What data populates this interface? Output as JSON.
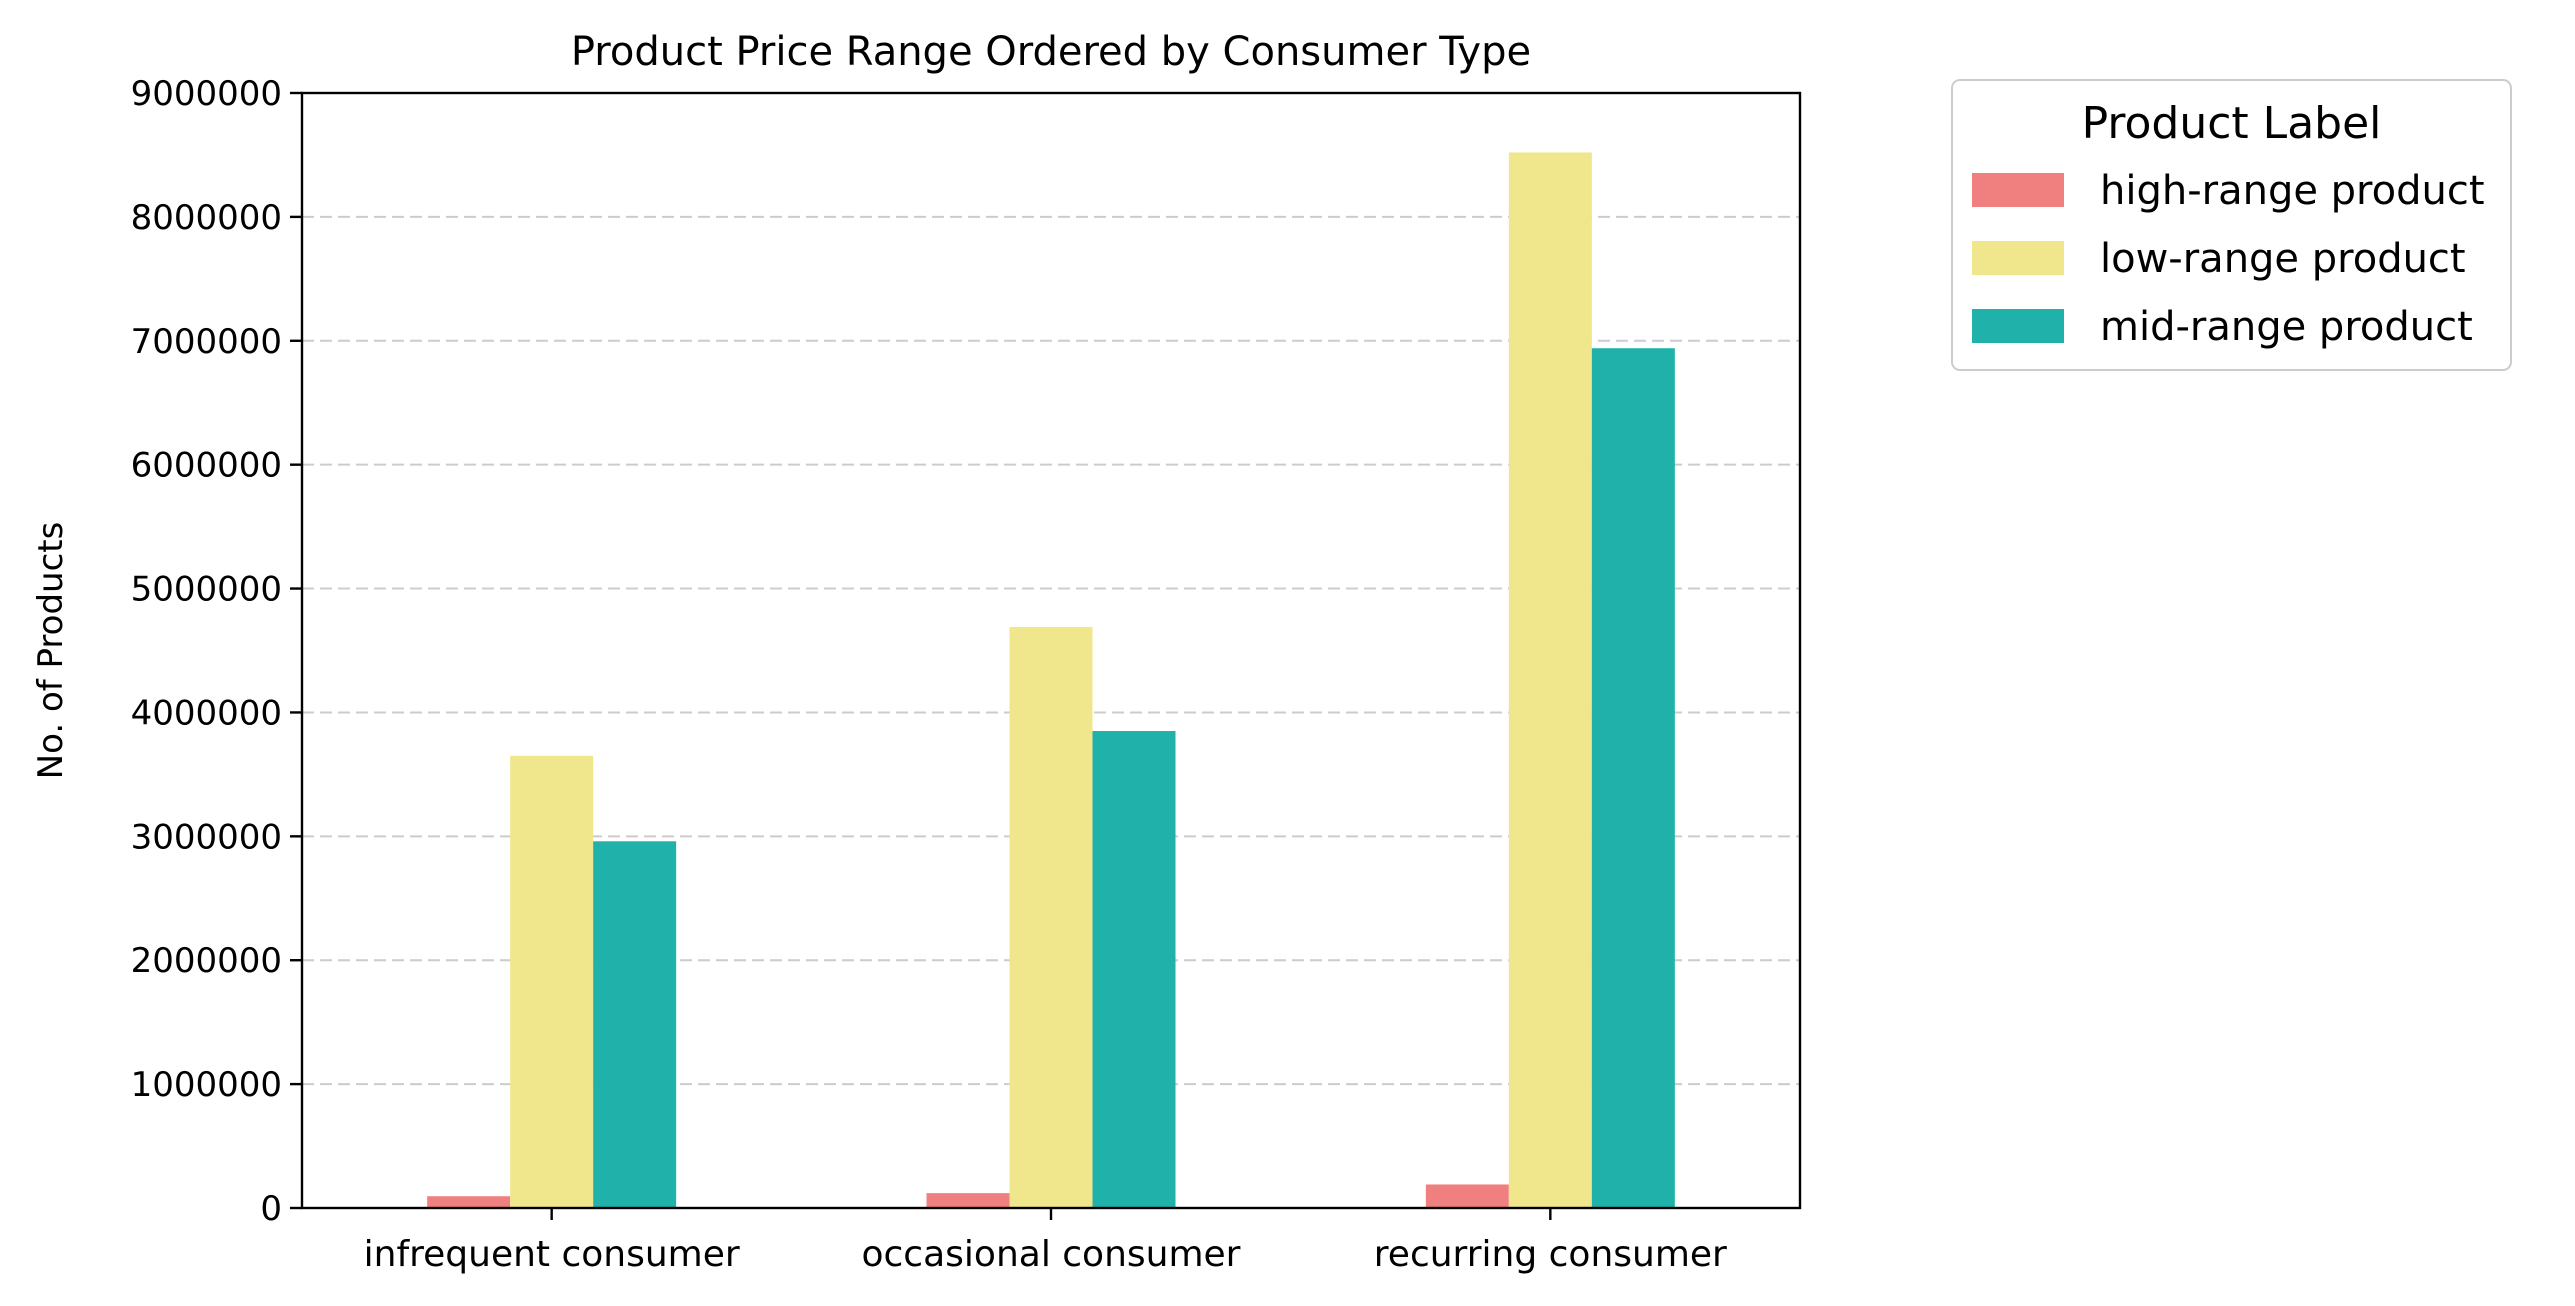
{
  "chart_data": {
    "type": "bar",
    "title": "Product Price Range Ordered by Consumer Type",
    "xlabel": "",
    "ylabel": "No. of Products",
    "categories": [
      "infrequent consumer",
      "occasional consumer",
      "recurring consumer"
    ],
    "series": [
      {
        "name": "high-range product",
        "color": "#f08080",
        "values": [
          95000,
          120000,
          190000
        ]
      },
      {
        "name": "low-range product",
        "color": "#f0e68c",
        "values": [
          3650000,
          4690000,
          8520000
        ]
      },
      {
        "name": "mid-range product",
        "color": "#20b2aa",
        "values": [
          2960000,
          3850000,
          6940000
        ]
      }
    ],
    "ylim": [
      0,
      9000000
    ],
    "yticks": [
      0,
      1000000,
      2000000,
      3000000,
      4000000,
      5000000,
      6000000,
      7000000,
      8000000,
      9000000
    ],
    "ytick_labels": [
      "0",
      "1000000",
      "2000000",
      "3000000",
      "4000000",
      "5000000",
      "6000000",
      "7000000",
      "8000000",
      "9000000"
    ],
    "grid": {
      "axis": "y",
      "style": "dashed",
      "color": "#cccccc"
    },
    "legend": {
      "title": "Product Label",
      "placement": "outside-top-right"
    }
  }
}
